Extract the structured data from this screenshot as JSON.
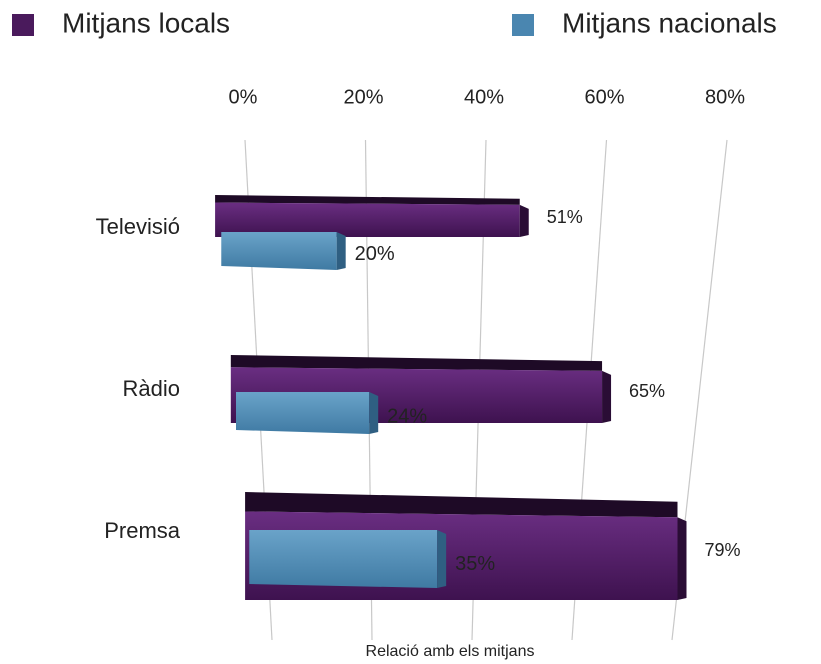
{
  "chart_data": {
    "type": "bar",
    "orientation": "horizontal",
    "x_label": "Relació amb els mitjans",
    "categories": [
      "Televisió",
      "Ràdio",
      "Premsa"
    ],
    "series": [
      {
        "name": "Mitjans locals",
        "color": "#4a1a5c",
        "values": [
          51,
          65,
          79
        ],
        "value_labels": [
          "51%",
          "65%",
          "79%"
        ]
      },
      {
        "name": "Mitjans nacionals",
        "color": "#4a86b0",
        "values": [
          20,
          24,
          35
        ],
        "value_labels": [
          "20%",
          "24%",
          "35%"
        ]
      }
    ],
    "xlim": [
      0,
      80
    ],
    "xticks": [
      {
        "value": 0,
        "label": "0%"
      },
      {
        "value": 20,
        "label": "20%"
      },
      {
        "value": 40,
        "label": "40%"
      },
      {
        "value": 60,
        "label": "60%"
      },
      {
        "value": 80,
        "label": "80%"
      }
    ],
    "grid": true,
    "legend": "top"
  }
}
